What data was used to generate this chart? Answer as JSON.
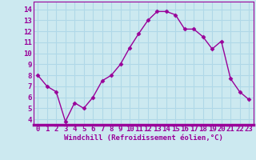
{
  "x": [
    0,
    1,
    2,
    3,
    4,
    5,
    6,
    7,
    8,
    9,
    10,
    11,
    12,
    13,
    14,
    15,
    16,
    17,
    18,
    19,
    20,
    21,
    22,
    23
  ],
  "y": [
    8.0,
    7.0,
    6.5,
    3.8,
    5.5,
    5.0,
    6.0,
    7.5,
    8.0,
    9.0,
    10.5,
    11.8,
    13.0,
    13.8,
    13.8,
    13.5,
    12.2,
    12.2,
    11.5,
    10.4,
    11.1,
    7.7,
    6.5,
    5.8
  ],
  "line_color": "#990099",
  "marker": "D",
  "marker_size": 2.5,
  "linewidth": 1.0,
  "xlabel": "Windchill (Refroidissement éolien,°C)",
  "xlabel_fontsize": 6.5,
  "xticks": [
    0,
    1,
    2,
    3,
    4,
    5,
    6,
    7,
    8,
    9,
    10,
    11,
    12,
    13,
    14,
    15,
    16,
    17,
    18,
    19,
    20,
    21,
    22,
    23
  ],
  "yticks": [
    4,
    5,
    6,
    7,
    8,
    9,
    10,
    11,
    12,
    13,
    14
  ],
  "ylim": [
    3.5,
    14.7
  ],
  "xlim": [
    -0.5,
    23.5
  ],
  "bg_color": "#cce9f0",
  "grid_color": "#b0d8e8",
  "tick_label_fontsize": 6.5,
  "spine_color": "#990099",
  "bottom_bar_color": "#990099"
}
